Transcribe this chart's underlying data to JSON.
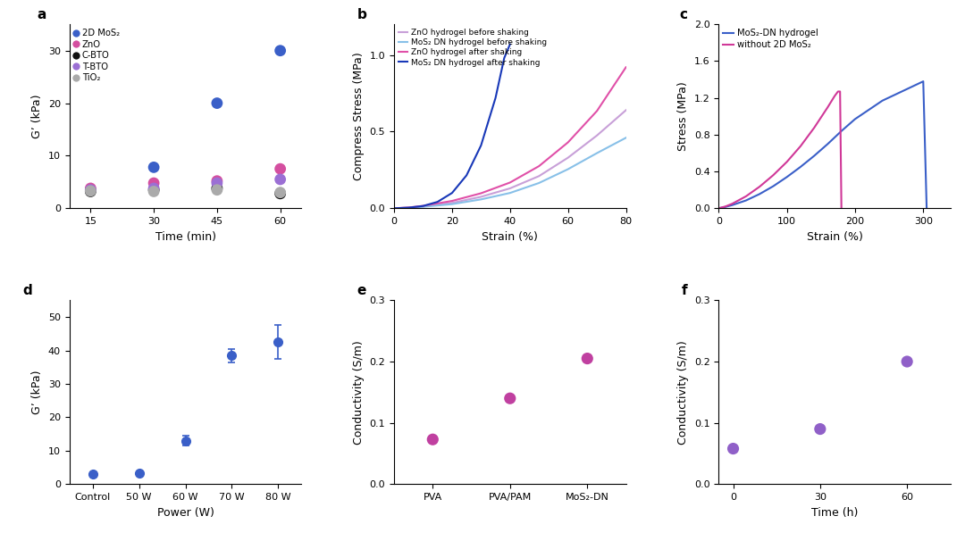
{
  "fig_width": 10.8,
  "fig_height": 6.06,
  "background_color": "#ffffff",
  "panel_a": {
    "label": "a",
    "times": [
      15,
      30,
      45,
      60
    ],
    "series": {
      "2D MoS₂": {
        "color": "#3a5fc8",
        "values": [
          3.5,
          7.8,
          20.0,
          30.0
        ]
      },
      "ZnO": {
        "color": "#d44fa0",
        "values": [
          3.8,
          4.8,
          5.2,
          7.5
        ]
      },
      "C-BTO": {
        "color": "#111111",
        "values": [
          3.2,
          3.5,
          3.8,
          2.8
        ]
      },
      "T-BTO": {
        "color": "#9b6fd4",
        "values": [
          3.5,
          3.8,
          4.8,
          5.5
        ]
      },
      "TiO₂": {
        "color": "#aaaaaa",
        "values": [
          3.3,
          3.2,
          3.5,
          3.0
        ]
      }
    },
    "xlabel": "Time (min)",
    "ylabel": "G’ (kPa)",
    "ylim": [
      0,
      35
    ],
    "yticks": [
      0,
      10,
      20,
      30
    ],
    "xticks": [
      15,
      30,
      45,
      60
    ]
  },
  "panel_b": {
    "label": "b",
    "xlabel": "Strain (%)",
    "ylabel": "Compress Stress (MPa)",
    "xlim": [
      0,
      80
    ],
    "ylim": [
      0,
      1.2
    ],
    "yticks": [
      0,
      0.5,
      1.0
    ],
    "series": {
      "ZnO hydrogel before shaking": {
        "color": "#c8a0d8",
        "x": [
          0,
          5,
          10,
          20,
          30,
          40,
          50,
          60,
          70,
          80
        ],
        "y": [
          0,
          0.004,
          0.012,
          0.035,
          0.075,
          0.13,
          0.21,
          0.33,
          0.475,
          0.64
        ]
      },
      "MoS₂ DN hydrogel before shaking": {
        "color": "#88c0e8",
        "x": [
          0,
          5,
          10,
          20,
          30,
          40,
          50,
          60,
          70,
          80
        ],
        "y": [
          0,
          0.003,
          0.01,
          0.027,
          0.058,
          0.1,
          0.165,
          0.255,
          0.36,
          0.46
        ]
      },
      "ZnO hydrogel after shaking": {
        "color": "#e050a8",
        "x": [
          0,
          5,
          10,
          20,
          30,
          40,
          50,
          60,
          70,
          80
        ],
        "y": [
          0,
          0.005,
          0.016,
          0.048,
          0.098,
          0.168,
          0.275,
          0.43,
          0.635,
          0.92
        ]
      },
      "MoS₂ DN hydrogel after shaking": {
        "color": "#1838b8",
        "x": [
          0,
          5,
          10,
          15,
          20,
          25,
          30,
          35,
          38,
          40
        ],
        "y": [
          0,
          0.004,
          0.015,
          0.042,
          0.1,
          0.215,
          0.41,
          0.72,
          0.98,
          1.07
        ]
      }
    }
  },
  "panel_c": {
    "label": "c",
    "xlabel": "Strain (%)",
    "ylabel": "Stress (MPa)",
    "xlim": [
      0,
      340
    ],
    "ylim": [
      0,
      2.0
    ],
    "yticks": [
      0.0,
      0.4,
      0.8,
      1.2,
      1.6,
      2.0
    ],
    "xticks": [
      0,
      100,
      200,
      300
    ],
    "series": {
      "MoS₂-DN hydrogel": {
        "color": "#3a5fc8",
        "x": [
          0,
          10,
          20,
          40,
          60,
          80,
          100,
          120,
          140,
          160,
          180,
          200,
          220,
          240,
          260,
          280,
          300,
          305
        ],
        "y": [
          0,
          0.015,
          0.035,
          0.085,
          0.155,
          0.24,
          0.34,
          0.45,
          0.57,
          0.7,
          0.84,
          0.97,
          1.07,
          1.17,
          1.24,
          1.31,
          1.38,
          0.0
        ]
      },
      "without 2D MoS₂": {
        "color": "#d03898",
        "x": [
          0,
          10,
          20,
          40,
          60,
          80,
          100,
          120,
          140,
          160,
          170,
          175,
          178,
          180
        ],
        "y": [
          0,
          0.02,
          0.05,
          0.13,
          0.235,
          0.36,
          0.505,
          0.675,
          0.875,
          1.1,
          1.22,
          1.27,
          1.27,
          0.0
        ]
      }
    }
  },
  "panel_d": {
    "label": "d",
    "xlabel": "Power (W)",
    "ylabel": "G’ (kPa)",
    "xlim": [
      -0.5,
      4.5
    ],
    "ylim": [
      0,
      55
    ],
    "yticks": [
      0,
      10,
      20,
      30,
      40,
      50
    ],
    "xtick_labels": [
      "Control",
      "50 W",
      "60 W",
      "70 W",
      "80 W"
    ],
    "data": {
      "x": [
        0,
        1,
        2,
        3,
        4
      ],
      "y": [
        3.0,
        3.2,
        13.0,
        38.5,
        42.5
      ],
      "yerr": [
        null,
        null,
        1.5,
        2.0,
        5.0
      ],
      "color": "#3a5fc8"
    }
  },
  "panel_e": {
    "label": "e",
    "xlabel": "",
    "ylabel": "Conductivity (S/m)",
    "xlim": [
      -0.5,
      2.5
    ],
    "ylim": [
      0,
      0.3
    ],
    "yticks": [
      0,
      0.1,
      0.2,
      0.3
    ],
    "xtick_labels": [
      "PVA",
      "PVA/PAM",
      "MoS₂-DN"
    ],
    "data": {
      "x": [
        0,
        1,
        2
      ],
      "y": [
        0.073,
        0.14,
        0.205
      ],
      "color": "#c040a0"
    }
  },
  "panel_f": {
    "label": "f",
    "xlabel": "Time (h)",
    "ylabel": "Conductivity (S/m)",
    "xlim": [
      -5,
      75
    ],
    "ylim": [
      0,
      0.3
    ],
    "yticks": [
      0,
      0.1,
      0.2,
      0.3
    ],
    "xticks": [
      0,
      30,
      60
    ],
    "data": {
      "x": [
        0,
        30,
        60
      ],
      "y": [
        0.058,
        0.09,
        0.2
      ],
      "color": "#9060c8"
    }
  }
}
